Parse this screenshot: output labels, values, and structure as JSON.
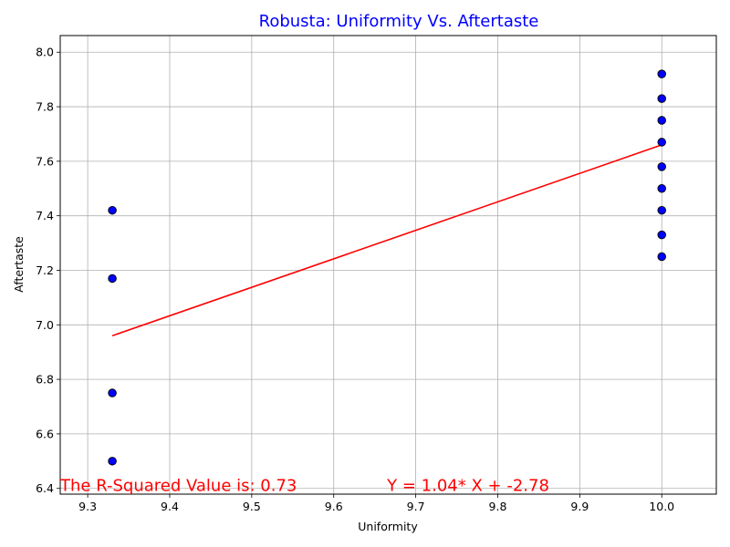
{
  "chart_data": {
    "type": "scatter",
    "title": "Robusta: Uniformity Vs. Aftertaste",
    "xlabel": "Uniformity",
    "ylabel": "Aftertaste",
    "xlim": [
      9.2665,
      10.0665
    ],
    "ylim": [
      6.379,
      8.061
    ],
    "xticks": [
      "9.3",
      "9.4",
      "9.5",
      "9.6",
      "9.7",
      "9.8",
      "9.9",
      "10.0"
    ],
    "yticks": [
      "6.4",
      "6.6",
      "6.8",
      "7.0",
      "7.2",
      "7.4",
      "7.6",
      "7.8",
      "8.0"
    ],
    "grid": true,
    "colors": {
      "point_fill": "#0000ff",
      "point_edge": "#000000",
      "regression": "#ff0000",
      "title": "#0000ff",
      "annotation": "#ff0000"
    },
    "points": [
      {
        "x": 9.33,
        "y": 7.42
      },
      {
        "x": 9.33,
        "y": 7.17
      },
      {
        "x": 9.33,
        "y": 6.75
      },
      {
        "x": 9.33,
        "y": 6.5
      },
      {
        "x": 10.0,
        "y": 7.92
      },
      {
        "x": 10.0,
        "y": 7.83
      },
      {
        "x": 10.0,
        "y": 7.75
      },
      {
        "x": 10.0,
        "y": 7.67
      },
      {
        "x": 10.0,
        "y": 7.58
      },
      {
        "x": 10.0,
        "y": 7.5
      },
      {
        "x": 10.0,
        "y": 7.42
      },
      {
        "x": 10.0,
        "y": 7.33
      },
      {
        "x": 10.0,
        "y": 7.25
      }
    ],
    "regression": {
      "x": [
        9.33,
        10.0
      ],
      "y": [
        6.96,
        7.66
      ]
    },
    "annotations": {
      "r_squared": {
        "text": "The R-Squared Value is: 0.73",
        "x": 9.2665,
        "y": 6.39
      },
      "equation": {
        "text": "Y = 1.04* X + -2.78",
        "x": 9.665,
        "y": 6.39
      }
    }
  }
}
